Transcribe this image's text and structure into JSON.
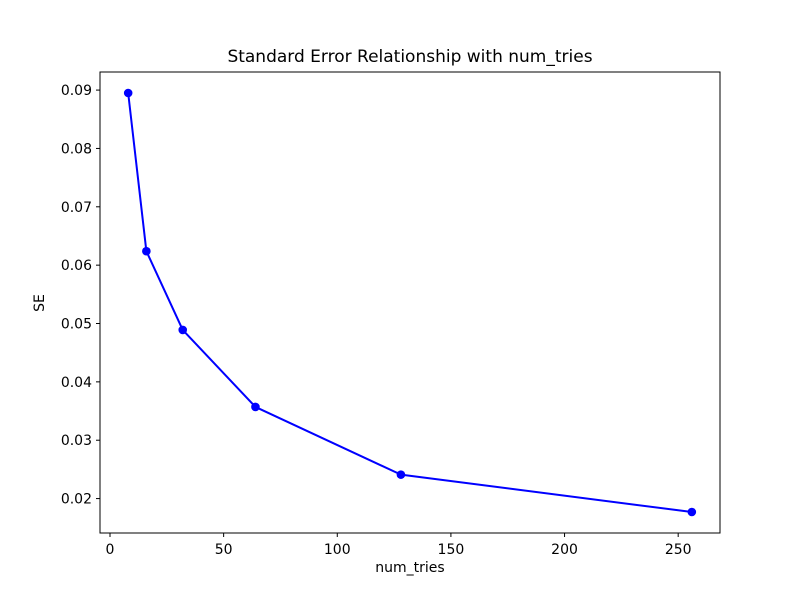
{
  "window": {
    "background": "#ffffff"
  },
  "chart_data": {
    "type": "line",
    "title": "Standard Error Relationship with num_tries",
    "xlabel": "num_tries",
    "ylabel": "SE",
    "x": [
      8,
      16,
      32,
      64,
      128,
      256
    ],
    "y": [
      0.0895,
      0.0624,
      0.0489,
      0.0357,
      0.0241,
      0.0177
    ],
    "xlim": [
      -4.4,
      268.4
    ],
    "ylim": [
      0.0141,
      0.0931
    ],
    "xticks": {
      "values": [
        0,
        50,
        100,
        150,
        200,
        250
      ],
      "labels": [
        "0",
        "50",
        "100",
        "150",
        "200",
        "250"
      ]
    },
    "yticks": {
      "values": [
        0.02,
        0.03,
        0.04,
        0.05,
        0.06,
        0.07,
        0.08,
        0.09
      ],
      "labels": [
        "0.02",
        "0.03",
        "0.04",
        "0.05",
        "0.06",
        "0.07",
        "0.08",
        "0.09"
      ]
    },
    "grid": false,
    "line_color": "#0000ff",
    "marker": "circle",
    "marker_color": "#0000ff",
    "axis_color": "#000000",
    "text_color": "#000000",
    "plot_background": "#ffffff"
  }
}
